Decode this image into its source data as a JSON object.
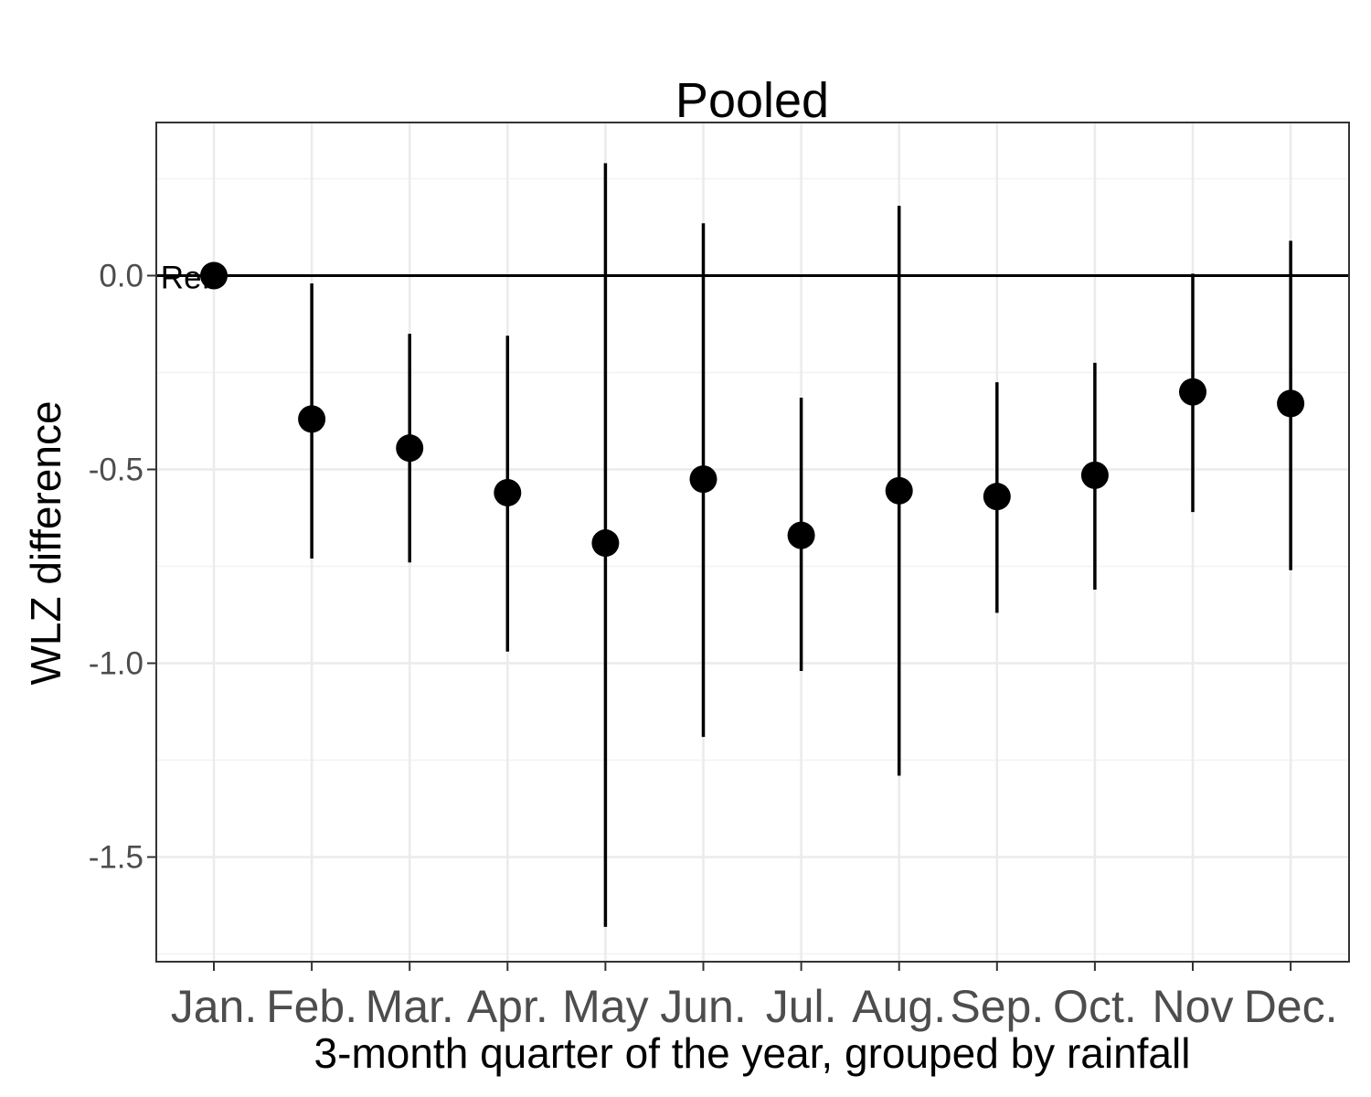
{
  "chart_data": {
    "type": "scatter",
    "title": "Pooled",
    "xlabel": "3-month quarter of the year, grouped by rainfall",
    "ylabel": "WLZ difference",
    "categories": [
      "Jan.",
      "Feb.",
      "Mar.",
      "Apr.",
      "May",
      "Jun.",
      "Jul.",
      "Aug.",
      "Sep.",
      "Oct.",
      "Nov",
      "Dec."
    ],
    "values": [
      0.0,
      -0.37,
      -0.445,
      -0.56,
      -0.69,
      -0.525,
      -0.67,
      -0.555,
      -0.57,
      -0.515,
      -0.3,
      -0.33
    ],
    "ci_lower": [
      0.0,
      -0.73,
      -0.74,
      -0.97,
      -1.68,
      -1.19,
      -1.02,
      -1.29,
      -0.87,
      -0.81,
      -0.61,
      -0.76
    ],
    "ci_upper": [
      0.0,
      -0.02,
      -0.15,
      -0.155,
      0.29,
      0.135,
      -0.315,
      0.18,
      -0.275,
      -0.225,
      0.005,
      0.09
    ],
    "yticks": [
      0.0,
      -0.5,
      -1.0,
      -1.5
    ],
    "ytick_labels": [
      "0.0",
      "-0.5",
      "-1.0",
      "-1.5"
    ],
    "ylim": [
      -1.77,
      0.395
    ],
    "reference_line": 0.0,
    "reference_label": "Ref.",
    "grid": true,
    "legend": "none"
  }
}
